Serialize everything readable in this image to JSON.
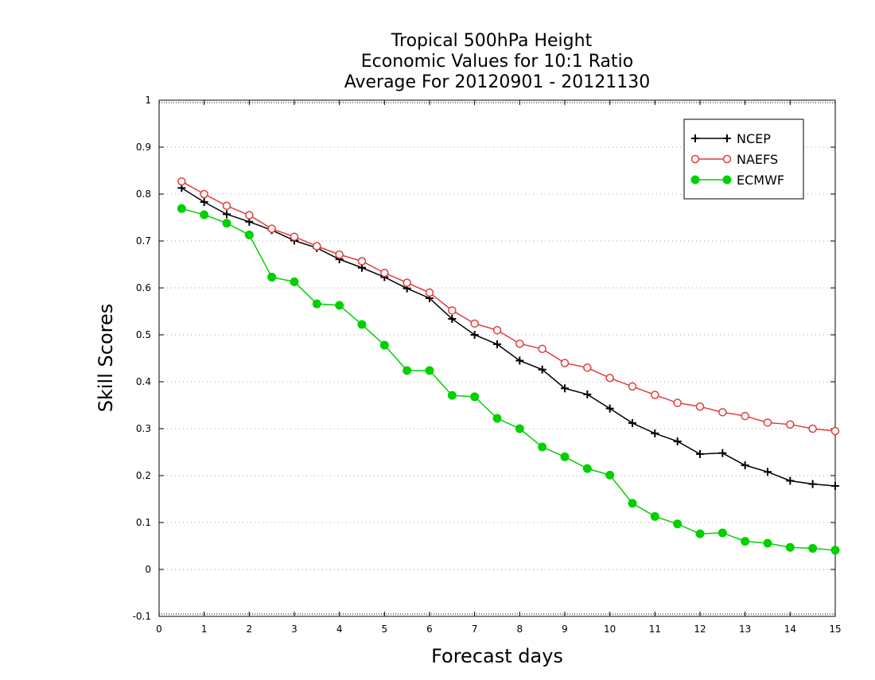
{
  "chart_data": {
    "type": "line",
    "title_lines": [
      "Tropical 500hPa Height",
      "Economic Values for 10:1 Ratio",
      "Average For 20120901 - 20121130"
    ],
    "xlabel": "Forecast days",
    "ylabel": "Skill Scores",
    "xlim": [
      0,
      15
    ],
    "ylim": [
      -0.1,
      1
    ],
    "x_ticks": [
      "0",
      "1",
      "2",
      "3",
      "4",
      "5",
      "6",
      "7",
      "8",
      "9",
      "10",
      "11",
      "12",
      "13",
      "14",
      "15"
    ],
    "y_ticks": [
      "-0.1",
      "0",
      "0.1",
      "0.2",
      "0.3",
      "0.4",
      "0.5",
      "0.6",
      "0.7",
      "0.8",
      "0.9",
      "1"
    ],
    "grid": "horizontal dotted",
    "legend_position": "top-right",
    "x": [
      0.5,
      1,
      1.5,
      2,
      2.5,
      3,
      3.5,
      4,
      4.5,
      5,
      5.5,
      6,
      6.5,
      7,
      7.5,
      8,
      8.5,
      9,
      9.5,
      10,
      10.5,
      11,
      11.5,
      12,
      12.5,
      13,
      13.5,
      14,
      14.5,
      15
    ],
    "series": [
      {
        "name": "NCEP",
        "color": "#000000",
        "marker": "plus",
        "values": [
          0.813,
          0.783,
          0.757,
          0.741,
          0.723,
          0.701,
          0.685,
          0.661,
          0.643,
          0.623,
          0.599,
          0.578,
          0.534,
          0.5,
          0.48,
          0.445,
          0.426,
          0.386,
          0.373,
          0.343,
          0.312,
          0.29,
          0.273,
          0.246,
          0.248,
          0.222,
          0.208,
          0.189,
          0.182,
          0.178
        ]
      },
      {
        "name": "NAEFS",
        "color": "#e03c3c",
        "marker": "open-circle",
        "values": [
          0.827,
          0.8,
          0.775,
          0.755,
          0.726,
          0.709,
          0.689,
          0.671,
          0.657,
          0.632,
          0.611,
          0.59,
          0.552,
          0.524,
          0.51,
          0.481,
          0.47,
          0.44,
          0.43,
          0.408,
          0.39,
          0.372,
          0.355,
          0.347,
          0.335,
          0.327,
          0.313,
          0.309,
          0.3,
          0.295
        ]
      },
      {
        "name": "ECMWF",
        "color": "#00d000",
        "marker": "filled-circle",
        "values": [
          0.769,
          0.756,
          0.738,
          0.713,
          0.623,
          0.613,
          0.566,
          0.563,
          0.522,
          0.478,
          0.424,
          0.424,
          0.371,
          0.368,
          0.322,
          0.3,
          0.261,
          0.24,
          0.215,
          0.201,
          0.141,
          0.113,
          0.097,
          0.076,
          0.078,
          0.06,
          0.056,
          0.047,
          0.045,
          0.041
        ]
      }
    ]
  }
}
